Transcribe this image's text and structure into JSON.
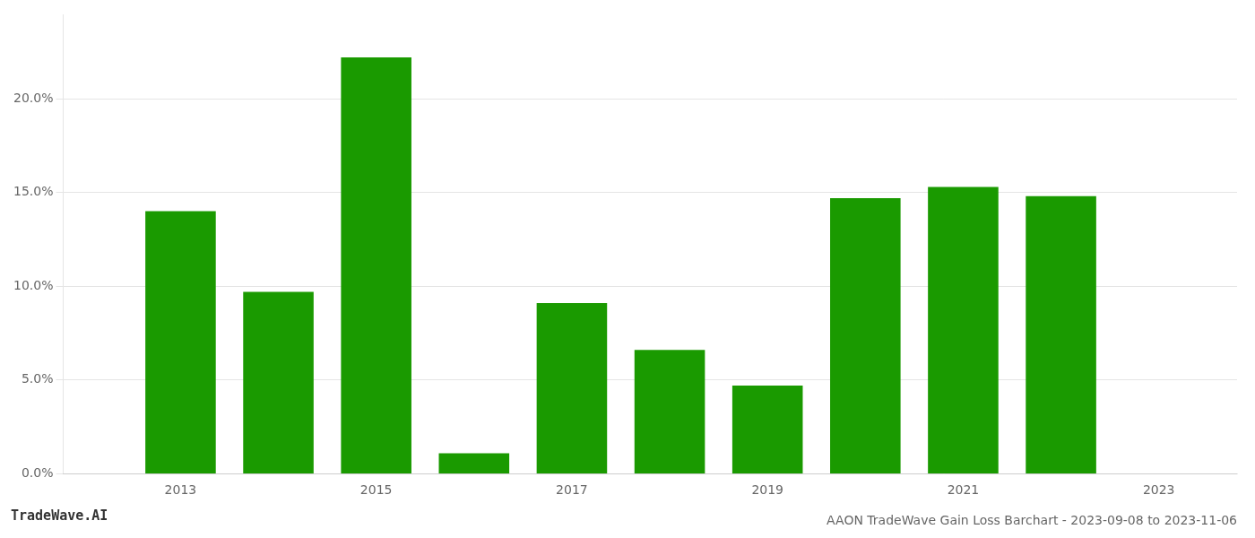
{
  "chart_data": {
    "type": "bar",
    "title": "AAON TradeWave Gain Loss Barchart - 2023-09-08 to 2023-11-06",
    "annotations": [
      "TradeWave.AI"
    ],
    "x": [
      2013,
      2014,
      2015,
      2016,
      2017,
      2018,
      2019,
      2020,
      2021,
      2022
    ],
    "values": [
      0.14,
      0.097,
      0.222,
      0.011,
      0.091,
      0.066,
      0.047,
      0.147,
      0.153,
      0.148
    ],
    "color": "#1a9a00",
    "xlim": [
      2011.8,
      2023.8
    ],
    "xticks": [
      2013,
      2015,
      2017,
      2019,
      2021,
      2023
    ],
    "ylim": [
      0,
      0.245
    ],
    "yticks": [
      {
        "value": 0.0,
        "label": "0.0%"
      },
      {
        "value": 0.05,
        "label": "5.0%"
      },
      {
        "value": 0.1,
        "label": "10.0%"
      },
      {
        "value": 0.15,
        "label": "15.0%"
      },
      {
        "value": 0.2,
        "label": "20.0%"
      }
    ],
    "grid": true
  }
}
